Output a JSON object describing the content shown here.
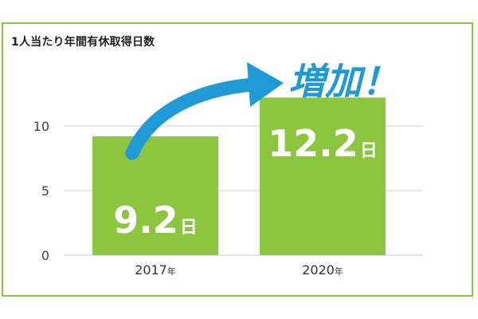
{
  "chart_data": {
    "type": "bar",
    "title": "1人当たり年間有休取得日数",
    "categories": [
      "2017年",
      "2020年"
    ],
    "x_tick_labels": [
      {
        "number": "2017",
        "unit": "年"
      },
      {
        "number": "2020",
        "unit": "年"
      }
    ],
    "values": [
      9.2,
      12.2
    ],
    "value_labels": [
      {
        "number": "9.2",
        "unit": "日"
      },
      {
        "number": "12.2",
        "unit": "日"
      }
    ],
    "y_ticks": [
      "0",
      "5",
      "10"
    ],
    "ylim": [
      0,
      12.2
    ],
    "grid": true,
    "annotation": "増加！",
    "colors": {
      "bar": "#8cc63f",
      "arrow": "#1f9ad6",
      "annotation": "#1f9ad6",
      "frame": "#8cc63f",
      "grid": "#cccccc"
    }
  }
}
